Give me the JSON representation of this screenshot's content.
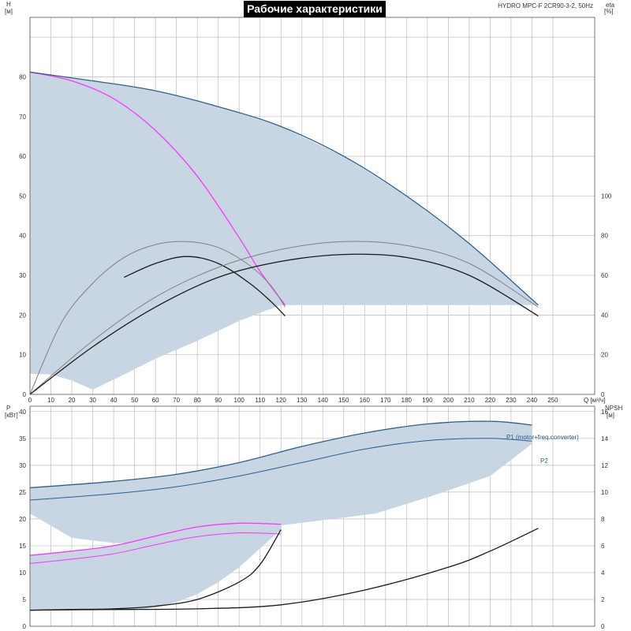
{
  "title": "Рабочие характеристики",
  "model": "HYDRO MPC-F 2CR90-3-2, 50Hz",
  "colors": {
    "envelope": "#c8d5e2",
    "grid": "#bcbcbc",
    "axis": "#555555",
    "dark_blue": "#2f5f8f",
    "gray": "#808080",
    "black": "#1a1a1a",
    "magenta": "#ff33ff"
  },
  "chart_data": [
    {
      "type": "line",
      "name": "top",
      "x_label": "Q",
      "x_unit": "[м³/ч]",
      "xlim": [
        0,
        270
      ],
      "x_ticks": [
        0,
        10,
        20,
        30,
        40,
        50,
        60,
        70,
        80,
        90,
        100,
        110,
        120,
        130,
        140,
        150,
        160,
        170,
        180,
        190,
        200,
        210,
        220,
        230,
        240,
        250
      ],
      "y_left_label": "H",
      "y_left_unit": "[м]",
      "ylim": [
        0,
        95
      ],
      "y_left_ticks": [
        0,
        10,
        20,
        30,
        40,
        50,
        60,
        70,
        80
      ],
      "y_right_label": "eta",
      "y_right_unit": "[%]",
      "y_right_lim": [
        0,
        190
      ],
      "y_right_ticks": [
        0,
        20,
        40,
        60,
        80,
        100
      ],
      "envelope": [
        [
          0,
          81.2
        ],
        [
          30,
          79
        ],
        [
          60,
          76.5
        ],
        [
          90,
          72.5
        ],
        [
          120,
          67.5
        ],
        [
          150,
          60
        ],
        [
          180,
          50
        ],
        [
          210,
          38
        ],
        [
          243,
          22.5
        ],
        [
          243,
          22.5
        ],
        [
          120,
          22.5
        ],
        [
          100,
          18.5
        ],
        [
          80,
          13.5
        ],
        [
          60,
          9
        ],
        [
          45,
          5
        ],
        [
          30,
          1.2
        ],
        [
          20,
          3.5
        ],
        [
          10,
          5
        ],
        [
          0,
          5.2
        ]
      ],
      "series": [
        {
          "id": "H_one_pump",
          "color_key": "magenta",
          "width": 1.3,
          "points": [
            [
              0,
              81.2
            ],
            [
              20,
              79
            ],
            [
              40,
              74.5
            ],
            [
              60,
              66.5
            ],
            [
              80,
              55
            ],
            [
              100,
              39.5
            ],
            [
              110,
              31
            ],
            [
              122,
              22.5
            ]
          ]
        },
        {
          "id": "H_two_pumps",
          "color_key": "dark_blue",
          "width": 1.3,
          "points": [
            [
              0,
              81.2
            ],
            [
              30,
              79
            ],
            [
              60,
              76.5
            ],
            [
              90,
              72.5
            ],
            [
              120,
              67.5
            ],
            [
              150,
              60
            ],
            [
              180,
              50
            ],
            [
              210,
              38
            ],
            [
              243,
              22.5
            ]
          ]
        },
        {
          "id": "eta_one_gray",
          "color_key": "gray",
          "width": 1.0,
          "points": [
            [
              0,
              0
            ],
            [
              15,
              36
            ],
            [
              30,
              56
            ],
            [
              45,
              69
            ],
            [
              60,
              75.5
            ],
            [
              75,
              77
            ],
            [
              90,
              74
            ],
            [
              105,
              65
            ],
            [
              115,
              55
            ],
            [
              122,
              44
            ]
          ]
        },
        {
          "id": "eta_one_black",
          "color_key": "black",
          "width": 1.3,
          "points": [
            [
              45,
              59
            ],
            [
              60,
              66
            ],
            [
              75,
              69.5
            ],
            [
              90,
              66
            ],
            [
              105,
              56
            ],
            [
              115,
              47
            ],
            [
              122,
              39.5
            ]
          ]
        },
        {
          "id": "eta_two_gray",
          "color_key": "gray",
          "width": 1.0,
          "points": [
            [
              0,
              0
            ],
            [
              30,
              27
            ],
            [
              60,
              49
            ],
            [
              90,
              64
            ],
            [
              120,
              73
            ],
            [
              150,
              77
            ],
            [
              180,
              75
            ],
            [
              210,
              66
            ],
            [
              243,
              44
            ]
          ]
        },
        {
          "id": "eta_two_black",
          "color_key": "black",
          "width": 1.3,
          "points": [
            [
              0,
              0
            ],
            [
              30,
              24
            ],
            [
              60,
              44
            ],
            [
              90,
              59
            ],
            [
              120,
              67
            ],
            [
              150,
              70.5
            ],
            [
              180,
              69
            ],
            [
              210,
              60
            ],
            [
              243,
              39.5
            ]
          ]
        }
      ]
    },
    {
      "type": "line",
      "name": "bottom",
      "x_label": "Q",
      "x_unit": "[м³/ч]",
      "xlim": [
        0,
        270
      ],
      "y_left_label": "P",
      "y_left_unit": "[кВт]",
      "ylim": [
        0,
        41
      ],
      "y_left_ticks": [
        0,
        5,
        10,
        15,
        20,
        25,
        30,
        35,
        40
      ],
      "y_right_label": "NPSH",
      "y_right_unit": "[м]",
      "y_right_lim": [
        0,
        16.4
      ],
      "y_right_ticks": [
        0,
        2,
        4,
        6,
        8,
        10,
        12,
        14,
        16
      ],
      "series_labels": {
        "p1": "P1 (motor+freq.converter)",
        "p2": "P2"
      },
      "envelope_upper": [
        [
          0,
          25.8
        ],
        [
          40,
          27
        ],
        [
          70,
          28.3
        ],
        [
          100,
          30.5
        ],
        [
          130,
          33.5
        ],
        [
          160,
          36
        ],
        [
          190,
          37.7
        ],
        [
          220,
          38.2
        ],
        [
          240,
          37.5
        ],
        [
          240,
          34
        ],
        [
          220,
          28
        ],
        [
          190,
          24
        ],
        [
          165,
          21
        ],
        [
          145,
          20
        ],
        [
          120,
          18.8
        ],
        [
          100,
          17.5
        ],
        [
          80,
          16
        ],
        [
          60,
          15.5
        ],
        [
          40,
          15.5
        ],
        [
          20,
          16.5
        ],
        [
          0,
          21
        ]
      ],
      "envelope_lower": [
        [
          0,
          13.2
        ],
        [
          20,
          14
        ],
        [
          40,
          15
        ],
        [
          60,
          16.8
        ],
        [
          80,
          18.5
        ],
        [
          100,
          19.2
        ],
        [
          120,
          19
        ],
        [
          120,
          18
        ],
        [
          110,
          14.5
        ],
        [
          100,
          11
        ],
        [
          90,
          8.2
        ],
        [
          80,
          6
        ],
        [
          70,
          4.5
        ],
        [
          60,
          3.5
        ],
        [
          50,
          3
        ],
        [
          0,
          3
        ],
        [
          0,
          13.2
        ]
      ],
      "series": [
        {
          "id": "P1_two",
          "color_key": "dark_blue",
          "width": 1.3,
          "points": [
            [
              0,
              25.8
            ],
            [
              40,
              27
            ],
            [
              70,
              28.3
            ],
            [
              100,
              30.5
            ],
            [
              130,
              33.5
            ],
            [
              160,
              36
            ],
            [
              190,
              37.7
            ],
            [
              220,
              38.2
            ],
            [
              240,
              37.5
            ]
          ]
        },
        {
          "id": "P2_two",
          "color_key": "dark_blue",
          "width": 1.0,
          "points": [
            [
              0,
              23.5
            ],
            [
              40,
              24.7
            ],
            [
              70,
              26
            ],
            [
              100,
              28
            ],
            [
              130,
              30.5
            ],
            [
              160,
              33
            ],
            [
              190,
              34.6
            ],
            [
              220,
              35
            ],
            [
              240,
              34.5
            ]
          ]
        },
        {
          "id": "P1_one",
          "color_key": "magenta",
          "width": 1.3,
          "points": [
            [
              0,
              13.2
            ],
            [
              20,
              14
            ],
            [
              40,
              15
            ],
            [
              60,
              16.8
            ],
            [
              80,
              18.5
            ],
            [
              100,
              19.2
            ],
            [
              120,
              19
            ]
          ]
        },
        {
          "id": "P2_one",
          "color_key": "magenta",
          "width": 1.0,
          "points": [
            [
              0,
              11.7
            ],
            [
              20,
              12.5
            ],
            [
              40,
              13.5
            ],
            [
              60,
              15.2
            ],
            [
              80,
              16.7
            ],
            [
              100,
              17.4
            ],
            [
              120,
              17.2
            ]
          ]
        },
        {
          "id": "NPSH_one",
          "color_key": "black",
          "width": 1.3,
          "axis": "right",
          "points": [
            [
              0,
              1.2
            ],
            [
              20,
              1.25
            ],
            [
              40,
              1.3
            ],
            [
              60,
              1.5
            ],
            [
              80,
              2.0
            ],
            [
              100,
              3.3
            ],
            [
              110,
              4.6
            ],
            [
              120,
              7.2
            ]
          ]
        },
        {
          "id": "NPSH_two",
          "color_key": "black",
          "width": 1.3,
          "axis": "right",
          "points": [
            [
              0,
              1.2
            ],
            [
              40,
              1.25
            ],
            [
              80,
              1.3
            ],
            [
              120,
              1.6
            ],
            [
              160,
              2.7
            ],
            [
              200,
              4.4
            ],
            [
              220,
              5.6
            ],
            [
              243,
              7.3
            ]
          ]
        }
      ]
    }
  ]
}
